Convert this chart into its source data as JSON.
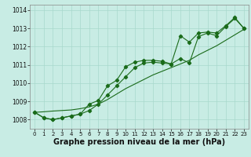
{
  "title": "Graphe pression niveau de la mer (hPa)",
  "x": [
    0,
    1,
    2,
    3,
    4,
    5,
    6,
    7,
    8,
    9,
    10,
    11,
    12,
    13,
    14,
    15,
    16,
    17,
    18,
    19,
    20,
    21,
    22,
    23
  ],
  "y_line1": [
    1008.4,
    1008.1,
    1008.0,
    1008.1,
    1008.2,
    1008.3,
    1008.5,
    1008.85,
    1009.35,
    1009.85,
    1010.35,
    1010.85,
    1011.1,
    1011.15,
    1011.1,
    1011.05,
    1011.35,
    1011.1,
    1012.55,
    1012.75,
    1012.6,
    1013.1,
    1013.55,
    1013.0
  ],
  "y_line2": [
    1008.4,
    1008.1,
    1008.0,
    1008.1,
    1008.2,
    1008.3,
    1008.85,
    1009.05,
    1009.85,
    1010.15,
    1010.9,
    1011.15,
    1011.25,
    1011.25,
    1011.2,
    1011.05,
    1012.6,
    1012.25,
    1012.75,
    1012.8,
    1012.75,
    1013.15,
    1013.6,
    1013.0
  ],
  "y_straight": [
    1008.4,
    1008.43,
    1008.47,
    1008.5,
    1008.53,
    1008.6,
    1008.7,
    1008.85,
    1009.1,
    1009.4,
    1009.7,
    1009.95,
    1010.2,
    1010.45,
    1010.65,
    1010.85,
    1011.05,
    1011.25,
    1011.55,
    1011.8,
    1012.05,
    1012.35,
    1012.65,
    1012.95
  ],
  "bg_color": "#c8ece4",
  "grid_color": "#a8d8cc",
  "line_color": "#1a6b1a",
  "ylim_min": 1007.5,
  "ylim_max": 1014.3,
  "yticks": [
    1008,
    1009,
    1010,
    1011,
    1012,
    1013,
    1014
  ],
  "tick_fontsize": 5.5,
  "title_fontsize": 7,
  "marker": "D",
  "markersize": 2.2,
  "linewidth": 0.8
}
